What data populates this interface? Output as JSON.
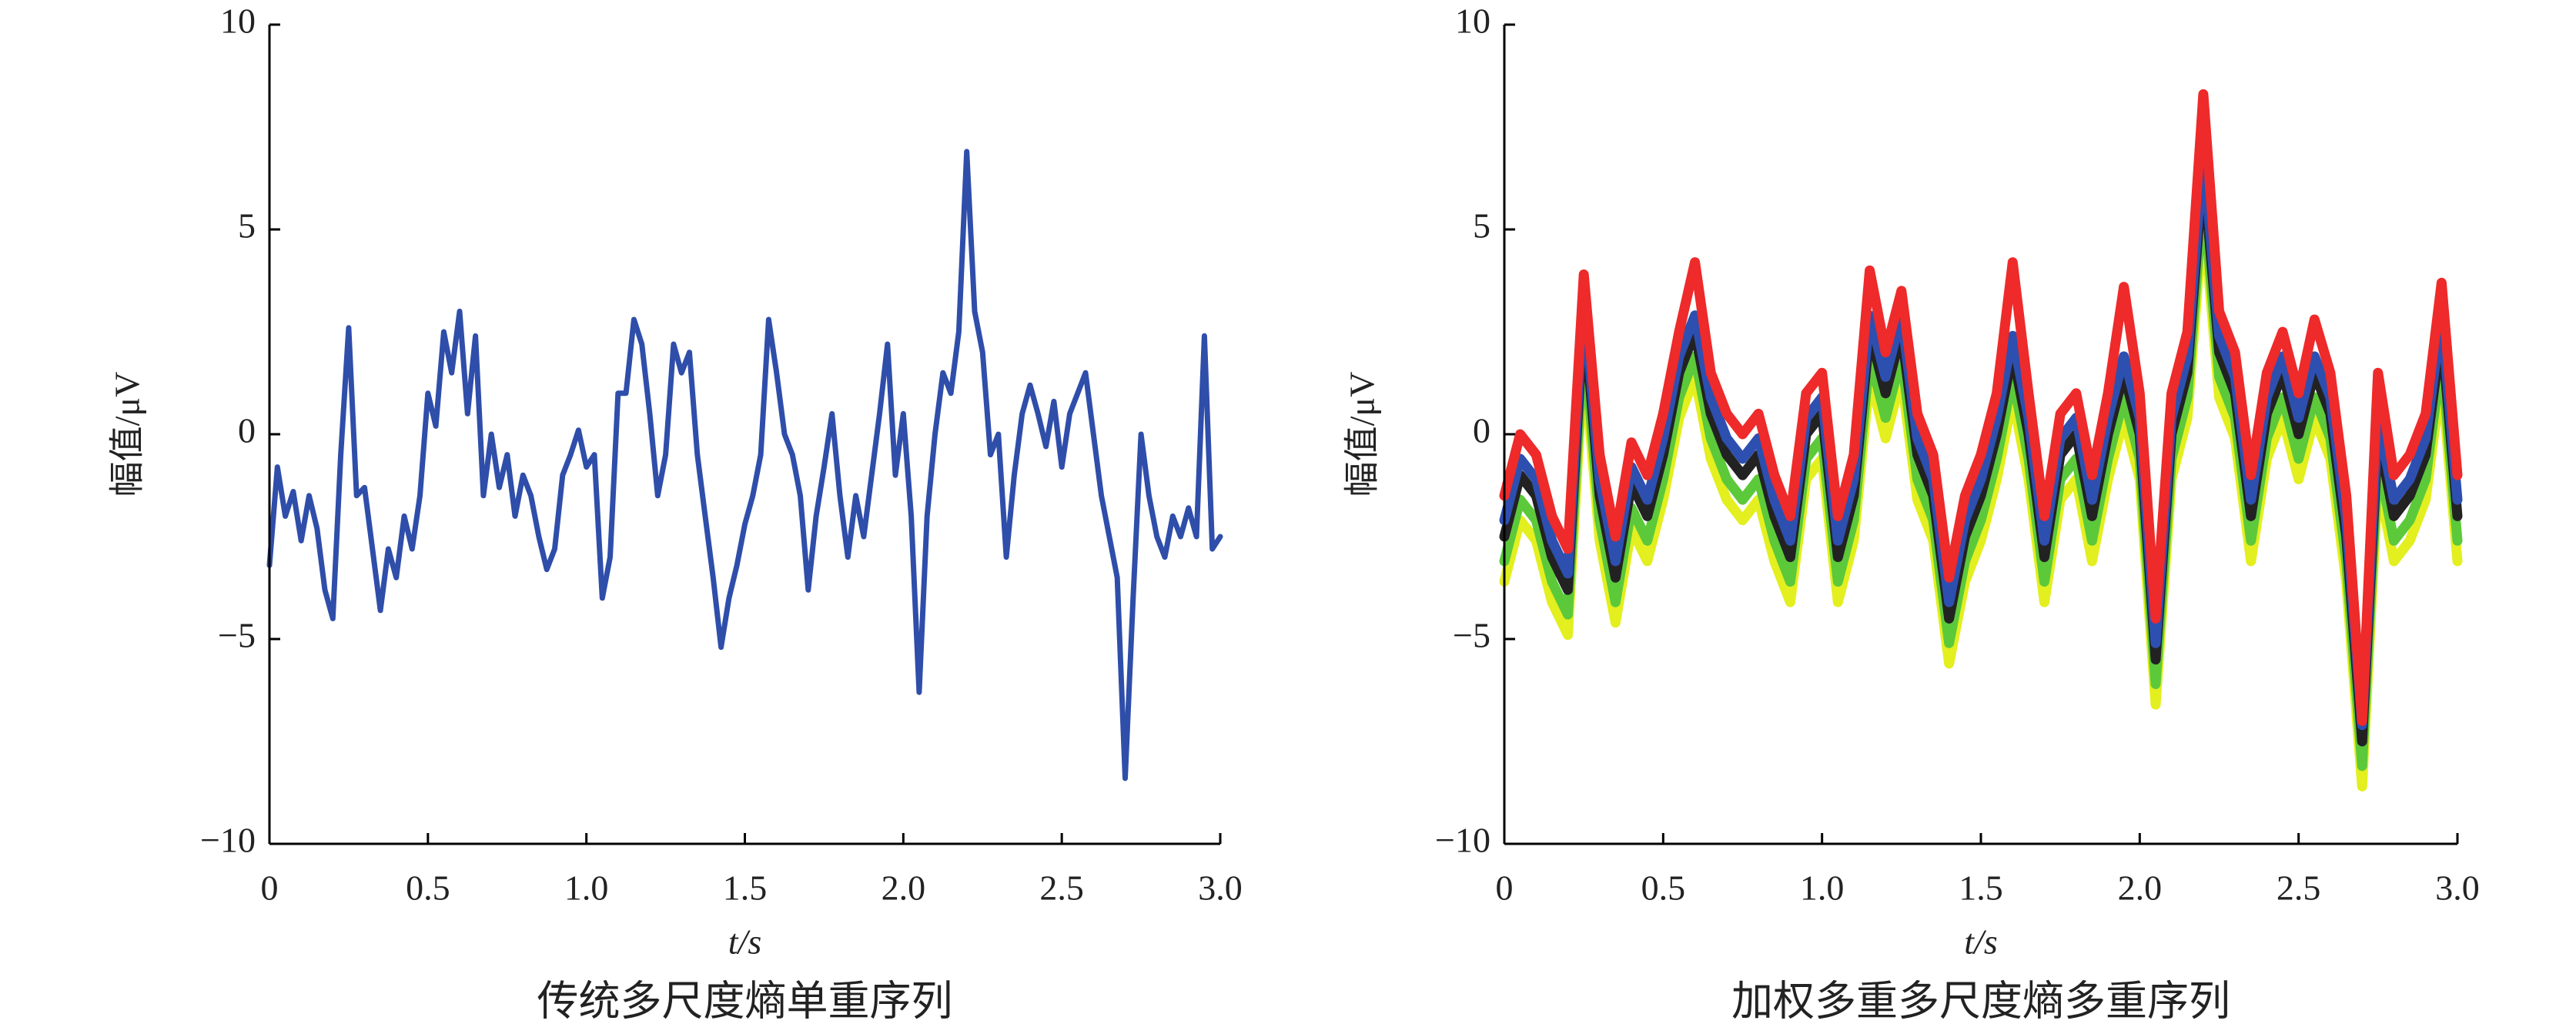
{
  "chart_data": [
    {
      "type": "line",
      "title": "传统多尺度熵单重序列",
      "xlabel": "t/s",
      "ylabel": "幅值/μV",
      "xlim": [
        0,
        3
      ],
      "ylim": [
        -10,
        10
      ],
      "xticks": [
        0,
        0.5,
        {
          "value": 1,
          "label": "1.0"
        },
        1.5,
        {
          "value": 2,
          "label": "2.0"
        },
        2.5,
        {
          "value": 3,
          "label": "3.0"
        }
      ],
      "yticks": [
        {
          "value": -10,
          "label": "−10"
        },
        {
          "value": -5,
          "label": "−5"
        },
        0,
        5,
        10
      ],
      "x": [
        0,
        0.025,
        0.05,
        0.075,
        0.1,
        0.125,
        0.15,
        0.175,
        0.2,
        0.225,
        0.25,
        0.275,
        0.3,
        0.325,
        0.35,
        0.375,
        0.4,
        0.425,
        0.45,
        0.475,
        0.5,
        0.525,
        0.55,
        0.575,
        0.6,
        0.625,
        0.65,
        0.675,
        0.7,
        0.725,
        0.75,
        0.775,
        0.8,
        0.825,
        0.85,
        0.875,
        0.9,
        0.925,
        0.95,
        0.975,
        1,
        1.025,
        1.05,
        1.075,
        1.1,
        1.125,
        1.15,
        1.175,
        1.2,
        1.225,
        1.25,
        1.275,
        1.3,
        1.325,
        1.35,
        1.375,
        1.4,
        1.425,
        1.45,
        1.475,
        1.5,
        1.525,
        1.55,
        1.575,
        1.6,
        1.625,
        1.65,
        1.675,
        1.7,
        1.725,
        1.75,
        1.775,
        1.8,
        1.825,
        1.85,
        1.875,
        1.9,
        1.925,
        1.95,
        1.975,
        2,
        2.025,
        2.05,
        2.075,
        2.1,
        2.125,
        2.15,
        2.175,
        2.2,
        2.225,
        2.25,
        2.275,
        2.3,
        2.325,
        2.35,
        2.375,
        2.4,
        2.425,
        2.45,
        2.475,
        2.5,
        2.525,
        2.55,
        2.575,
        2.6,
        2.625,
        2.65,
        2.675,
        2.7,
        2.725,
        2.75,
        2.775,
        2.8,
        2.825,
        2.85,
        2.875,
        2.9,
        2.925,
        2.95,
        2.975,
        3
      ],
      "series": [
        {
          "color": "#2f4eaa",
          "values": [
            -3.2,
            -0.8,
            -2,
            -1.4,
            -2.6,
            -1.5,
            -2.3,
            -3.8,
            -4.5,
            -0.5,
            2.6,
            -1.5,
            -1.3,
            -2.8,
            -4.3,
            -2.8,
            -3.5,
            -2,
            -2.8,
            -1.5,
            1,
            0.2,
            2.5,
            1.5,
            3,
            0.5,
            2.4,
            -1.5,
            0,
            -1.3,
            -0.5,
            -2,
            -1,
            -1.5,
            -2.5,
            -3.3,
            -2.8,
            -1,
            -0.5,
            0.1,
            -0.8,
            -0.5,
            -4,
            -3,
            1,
            1,
            2.8,
            2.2,
            0.5,
            -1.5,
            -0.5,
            2.2,
            1.5,
            2,
            -0.5,
            -2,
            -3.5,
            -5.2,
            -4,
            -3.2,
            -2.2,
            -1.5,
            -0.5,
            2.8,
            1.5,
            0,
            -0.5,
            -1.5,
            -3.8,
            -2,
            -0.8,
            0.5,
            -1.5,
            -3,
            -1.5,
            -2.5,
            -1,
            0.5,
            2.2,
            -1,
            0.5,
            -2,
            -6.3,
            -2,
            0,
            1.5,
            1,
            2.5,
            6.9,
            3,
            2,
            -0.5,
            0,
            -3,
            -1,
            0.5,
            1.2,
            0.5,
            -0.3,
            0.8,
            -0.8,
            0.5,
            1,
            1.5,
            0,
            -1.5,
            -2.5,
            -3.5,
            -8.4,
            -4,
            0,
            -1.5,
            -2.5,
            -3,
            -2,
            -2.5,
            -1.8,
            -2.5,
            2.4,
            -2.8,
            -2.5
          ]
        }
      ]
    },
    {
      "type": "line",
      "title": "加权多重多尺度熵多重序列",
      "xlabel": "t/s",
      "ylabel": "幅值/μV",
      "xlim": [
        0,
        3
      ],
      "ylim": [
        -10,
        10
      ],
      "xticks": [
        0,
        0.5,
        {
          "value": 1,
          "label": "1.0"
        },
        1.5,
        {
          "value": 2,
          "label": "2.0"
        },
        2.5,
        {
          "value": 3,
          "label": "3.0"
        }
      ],
      "yticks": [
        {
          "value": -10,
          "label": "−10"
        },
        {
          "value": -5,
          "label": "−5"
        },
        0,
        5,
        10
      ],
      "x": [
        0,
        0.05,
        0.1,
        0.15,
        0.2,
        0.25,
        0.3,
        0.35,
        0.4,
        0.45,
        0.5,
        0.55,
        0.6,
        0.65,
        0.7,
        0.75,
        0.8,
        0.85,
        0.9,
        0.95,
        1,
        1.05,
        1.1,
        1.15,
        1.2,
        1.25,
        1.3,
        1.35,
        1.4,
        1.45,
        1.5,
        1.55,
        1.6,
        1.65,
        1.7,
        1.75,
        1.8,
        1.85,
        1.9,
        1.95,
        2,
        2.05,
        2.1,
        2.15,
        2.2,
        2.25,
        2.3,
        2.35,
        2.4,
        2.45,
        2.5,
        2.55,
        2.6,
        2.65,
        2.7,
        2.75,
        2.8,
        2.85,
        2.9,
        2.95,
        3
      ],
      "series": [
        {
          "color": "#e3ef1f",
          "values": [
            -3.6,
            -2.1,
            -2.6,
            -4.1,
            -4.9,
            1.9,
            -2.6,
            -4.6,
            -2.3,
            -3.1,
            -1.6,
            0.4,
            1.4,
            -0.6,
            -1.6,
            -2.1,
            -1.6,
            -3.1,
            -4.1,
            -1.1,
            -0.6,
            -4.1,
            -2.6,
            1.4,
            -0.1,
            1.4,
            -1.6,
            -2.6,
            -5.6,
            -3.6,
            -2.6,
            -1.1,
            0.9,
            -1.1,
            -4.1,
            -1.6,
            -1.1,
            -3.1,
            -1.1,
            0.4,
            -1.1,
            -6.6,
            -1.1,
            0.4,
            5.4,
            0.9,
            -0.1,
            -3.1,
            -0.6,
            0.4,
            -1.1,
            0.4,
            -0.6,
            -3.6,
            -8.6,
            -1.1,
            -3.1,
            -2.6,
            -1.6,
            1.4,
            -3.1
          ]
        },
        {
          "color": "#5cc93a",
          "values": [
            -3.1,
            -1.6,
            -2.1,
            -3.6,
            -4.4,
            2.4,
            -2.1,
            -4.1,
            -1.8,
            -2.6,
            -1.1,
            0.9,
            1.9,
            -0.1,
            -1.1,
            -1.6,
            -1.1,
            -2.6,
            -3.6,
            -0.6,
            -0.1,
            -3.6,
            -2.1,
            1.9,
            0.4,
            1.9,
            -1.1,
            -2.1,
            -5.1,
            -3.1,
            -2.1,
            -0.6,
            1.4,
            -0.6,
            -3.6,
            -1.1,
            -0.6,
            -2.6,
            -0.6,
            0.9,
            -0.6,
            -6.1,
            -0.6,
            0.9,
            5.9,
            1.4,
            0.4,
            -2.6,
            -0.1,
            0.9,
            -0.6,
            0.9,
            -0.1,
            -3.1,
            -8.1,
            -0.6,
            -2.6,
            -2.1,
            -1.1,
            1.9,
            -2.6
          ]
        },
        {
          "color": "#222222",
          "values": [
            -2.5,
            -1,
            -1.5,
            -3,
            -3.8,
            3,
            -1.5,
            -3.5,
            -1.2,
            -2,
            -0.5,
            1.5,
            2.5,
            0.5,
            -0.5,
            -1,
            -0.5,
            -2,
            -3,
            0,
            0.5,
            -3,
            -1.5,
            2.5,
            1,
            2.5,
            -0.5,
            -1.5,
            -4.5,
            -2.5,
            -1.5,
            0,
            2,
            0,
            -3,
            -0.5,
            0,
            -2,
            0,
            1.5,
            0,
            -5.5,
            0,
            1.5,
            6.5,
            2,
            1,
            -2,
            0.5,
            1.5,
            0,
            1.5,
            0.5,
            -2.5,
            -7.5,
            0,
            -2,
            -1.5,
            -0.5,
            2.5,
            -2
          ]
        },
        {
          "color": "#2d4fb0",
          "values": [
            -2.1,
            -0.6,
            -1.1,
            -2.6,
            -3.4,
            3.4,
            -1.1,
            -3.1,
            -0.8,
            -1.6,
            -0.1,
            1.9,
            2.9,
            0.9,
            -0.1,
            -0.6,
            -0.1,
            -1.6,
            -2.6,
            0.4,
            0.9,
            -2.6,
            -1.1,
            2.9,
            1.4,
            2.9,
            -0.1,
            -1.1,
            -4.1,
            -2.1,
            -1.1,
            0.4,
            2.4,
            0.4,
            -2.6,
            -0.1,
            0.4,
            -1.6,
            0.4,
            1.9,
            0.4,
            -5.1,
            0.4,
            1.9,
            6.9,
            2.4,
            1.4,
            -1.6,
            0.9,
            1.9,
            0.4,
            1.9,
            0.9,
            -2.1,
            -7.1,
            0.4,
            -1.6,
            -1.1,
            -0.1,
            2.9,
            -1.6
          ]
        },
        {
          "color": "#ee2a2a",
          "values": [
            -1.5,
            0,
            -0.5,
            -2,
            -2.8,
            3.9,
            -0.5,
            -2.5,
            -0.2,
            -1,
            0.5,
            2.5,
            4.2,
            1.5,
            0.5,
            0,
            0.5,
            -1,
            -2,
            1,
            1.5,
            -2,
            -0.5,
            4,
            2,
            3.5,
            0.5,
            -0.5,
            -3.5,
            -1.5,
            -0.5,
            1,
            4.2,
            1,
            -2,
            0.5,
            1,
            -1,
            1,
            3.6,
            1,
            -4.5,
            1,
            2.5,
            8.3,
            3,
            2,
            -1,
            1.5,
            2.5,
            1,
            2.8,
            1.5,
            -1.5,
            -7,
            1.5,
            -1,
            -0.5,
            0.5,
            3.7,
            -1
          ]
        }
      ]
    }
  ]
}
